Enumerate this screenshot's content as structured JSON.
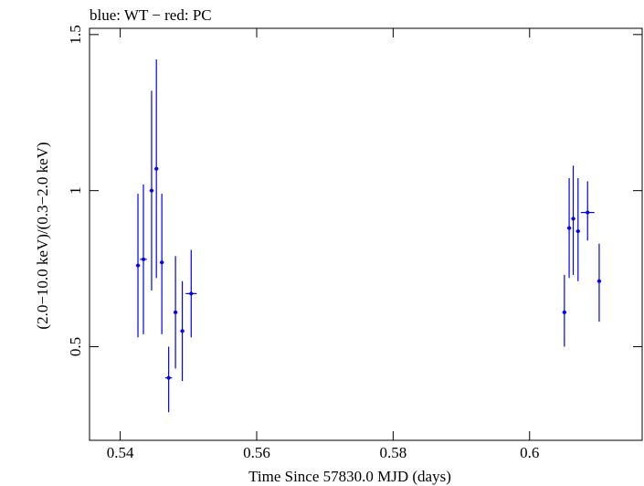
{
  "header": {
    "title": "blue: WT − red: PC"
  },
  "chart_data": {
    "type": "scatter",
    "title": "blue: WT − red: PC",
    "xlabel": "Time Since 57830.0 MJD (days)",
    "ylabel": "(2.0−10.0 keV)/(0.3−2.0 keV)",
    "xlim": [
      0.5355,
      0.6165
    ],
    "ylim": [
      0.2,
      1.52
    ],
    "x_ticks": [
      0.54,
      0.56,
      0.58,
      0.6
    ],
    "x_tick_labels": [
      "0.54",
      "0.56",
      "0.58",
      "0.6"
    ],
    "y_ticks": [
      0.5,
      1,
      1.5
    ],
    "y_tick_labels": [
      "0.5",
      "1",
      "1.5"
    ],
    "grid": false,
    "legend": "none",
    "colors": {
      "WT": "#0000ff",
      "PC": "#ff0000",
      "axes": "#000000"
    },
    "series": [
      {
        "name": "WT",
        "color": "#0000ff",
        "points": [
          {
            "x": 0.5426,
            "y": 0.76,
            "xerr": 0.0003,
            "ylo": 0.53,
            "yhi": 0.99
          },
          {
            "x": 0.5434,
            "y": 0.78,
            "xerr": 0.0005,
            "ylo": 0.54,
            "yhi": 1.02
          },
          {
            "x": 0.5446,
            "y": 1.0,
            "xerr": 0.0003,
            "ylo": 0.68,
            "yhi": 1.32
          },
          {
            "x": 0.5453,
            "y": 1.07,
            "xerr": 0.0003,
            "ylo": 0.72,
            "yhi": 1.42
          },
          {
            "x": 0.5461,
            "y": 0.77,
            "xerr": 0.0003,
            "ylo": 0.54,
            "yhi": 0.99
          },
          {
            "x": 0.5471,
            "y": 0.4,
            "xerr": 0.0005,
            "ylo": 0.29,
            "yhi": 0.5
          },
          {
            "x": 0.5481,
            "y": 0.61,
            "xerr": 0.0003,
            "ylo": 0.43,
            "yhi": 0.79
          },
          {
            "x": 0.5491,
            "y": 0.55,
            "xerr": 0.0003,
            "ylo": 0.39,
            "yhi": 0.71
          },
          {
            "x": 0.5504,
            "y": 0.67,
            "xerr": 0.0008,
            "ylo": 0.53,
            "yhi": 0.81
          },
          {
            "x": 0.6051,
            "y": 0.61,
            "xerr": 0.0003,
            "ylo": 0.5,
            "yhi": 0.73
          },
          {
            "x": 0.6058,
            "y": 0.88,
            "xerr": 0.0003,
            "ylo": 0.72,
            "yhi": 1.04
          },
          {
            "x": 0.6064,
            "y": 0.91,
            "xerr": 0.0003,
            "ylo": 0.73,
            "yhi": 1.08
          },
          {
            "x": 0.6071,
            "y": 0.87,
            "xerr": 0.0003,
            "ylo": 0.71,
            "yhi": 1.04
          },
          {
            "x": 0.6085,
            "y": 0.93,
            "xerr": 0.001,
            "ylo": 0.84,
            "yhi": 1.03
          },
          {
            "x": 0.6102,
            "y": 0.71,
            "xerr": 0.0003,
            "ylo": 0.58,
            "yhi": 0.83
          }
        ]
      }
    ]
  }
}
